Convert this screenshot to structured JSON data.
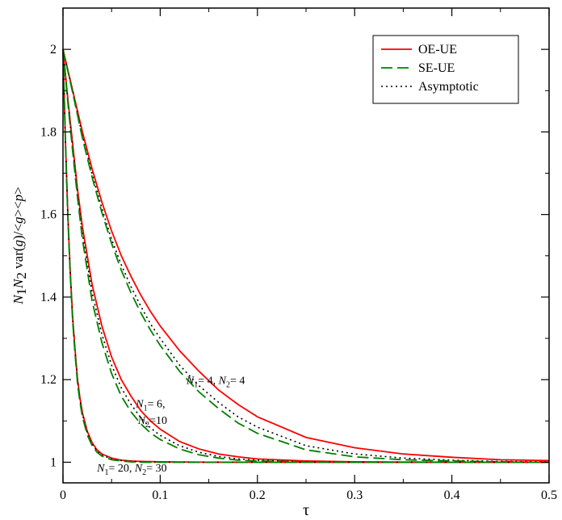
{
  "chart_data": {
    "type": "line",
    "xlabel": "τ",
    "ylabel": {
      "parts": [
        {
          "t": "N",
          "style": "it"
        },
        {
          "t": "1",
          "style": "sub"
        },
        {
          "t": "N",
          "style": "it"
        },
        {
          "t": "2",
          "style": "sub"
        },
        {
          "t": " var(",
          "style": "normal"
        },
        {
          "t": "g",
          "style": "it"
        },
        {
          "t": ")/<",
          "style": "normal"
        },
        {
          "t": "g",
          "style": "it"
        },
        {
          "t": "><",
          "style": "normal"
        },
        {
          "t": "p",
          "style": "it"
        },
        {
          "t": ">",
          "style": "normal"
        }
      ]
    },
    "xlim": [
      0,
      0.5
    ],
    "ylim": [
      0.95,
      2.1
    ],
    "xticks": [
      0,
      0.1,
      0.2,
      0.3,
      0.4,
      0.5
    ],
    "xtick_labels": [
      "0",
      "0.1",
      "0.2",
      "0.3",
      "0.4",
      "0.5"
    ],
    "yticks": [
      1,
      1.2,
      1.4,
      1.6,
      1.8,
      2
    ],
    "ytick_labels": [
      "1",
      "1.2",
      "1.4",
      "1.6",
      "1.8",
      "2"
    ],
    "grid": false,
    "legend_position": "top-right",
    "legend": [
      {
        "label": "OE-UE",
        "color": "#ff0000",
        "dash": "solid"
      },
      {
        "label": "SE-UE",
        "color": "#008000",
        "dash": "dashed"
      },
      {
        "label": "Asymptotic",
        "color": "#000000",
        "dash": "dotted"
      }
    ],
    "series": [
      {
        "group": "N1=4, N2=4",
        "style": "OE-UE",
        "x": [
          0,
          0.01,
          0.02,
          0.03,
          0.04,
          0.05,
          0.06,
          0.07,
          0.08,
          0.09,
          0.1,
          0.12,
          0.14,
          0.16,
          0.18,
          0.2,
          0.25,
          0.3,
          0.35,
          0.4,
          0.45,
          0.5
        ],
        "y": [
          2,
          1.9,
          1.8,
          1.71,
          1.63,
          1.56,
          1.5,
          1.45,
          1.405,
          1.365,
          1.33,
          1.27,
          1.22,
          1.175,
          1.14,
          1.11,
          1.06,
          1.035,
          1.02,
          1.012,
          1.006,
          1.004
        ]
      },
      {
        "group": "N1=4, N2=4",
        "style": "Asymptotic",
        "x": [
          0,
          0.01,
          0.02,
          0.03,
          0.04,
          0.05,
          0.06,
          0.07,
          0.08,
          0.09,
          0.1,
          0.12,
          0.14,
          0.16,
          0.18,
          0.2,
          0.25,
          0.3,
          0.35,
          0.4,
          0.45,
          0.5
        ],
        "y": [
          2,
          1.898,
          1.79,
          1.698,
          1.615,
          1.54,
          1.478,
          1.425,
          1.378,
          1.335,
          1.3,
          1.235,
          1.185,
          1.145,
          1.11,
          1.085,
          1.04,
          1.02,
          1.01,
          1.005,
          1.002,
          1.001
        ]
      },
      {
        "group": "N1=4, N2=4",
        "style": "SE-UE",
        "x": [
          0,
          0.01,
          0.02,
          0.03,
          0.04,
          0.05,
          0.06,
          0.07,
          0.08,
          0.09,
          0.1,
          0.12,
          0.14,
          0.16,
          0.18,
          0.2,
          0.25,
          0.3,
          0.35,
          0.4,
          0.45,
          0.5
        ],
        "y": [
          2,
          1.895,
          1.785,
          1.69,
          1.605,
          1.53,
          1.465,
          1.41,
          1.362,
          1.32,
          1.283,
          1.22,
          1.17,
          1.13,
          1.095,
          1.07,
          1.03,
          1.013,
          1.006,
          1.003,
          1.001,
          1
        ]
      },
      {
        "group": "N1=6, N2=10",
        "style": "OE-UE",
        "x": [
          0,
          0.005,
          0.01,
          0.015,
          0.02,
          0.03,
          0.04,
          0.05,
          0.06,
          0.07,
          0.08,
          0.09,
          0.1,
          0.12,
          0.14,
          0.16,
          0.18,
          0.2,
          0.25,
          0.3,
          0.4,
          0.5
        ],
        "y": [
          2,
          1.88,
          1.77,
          1.66,
          1.57,
          1.43,
          1.33,
          1.255,
          1.2,
          1.16,
          1.125,
          1.1,
          1.08,
          1.05,
          1.032,
          1.02,
          1.013,
          1.008,
          1.003,
          1.001,
          1,
          1
        ]
      },
      {
        "group": "N1=6, N2=10",
        "style": "Asymptotic",
        "x": [
          0,
          0.005,
          0.01,
          0.015,
          0.02,
          0.03,
          0.04,
          0.05,
          0.06,
          0.07,
          0.08,
          0.09,
          0.1,
          0.12,
          0.14,
          0.16,
          0.18,
          0.2,
          0.25,
          0.3,
          0.4,
          0.5
        ],
        "y": [
          2,
          1.875,
          1.76,
          1.65,
          1.555,
          1.41,
          1.31,
          1.235,
          1.18,
          1.14,
          1.108,
          1.083,
          1.065,
          1.04,
          1.024,
          1.014,
          1.008,
          1.005,
          1.001,
          1,
          1,
          1
        ]
      },
      {
        "group": "N1=6, N2=10",
        "style": "SE-UE",
        "x": [
          0,
          0.005,
          0.01,
          0.015,
          0.02,
          0.03,
          0.04,
          0.05,
          0.06,
          0.07,
          0.08,
          0.09,
          0.1,
          0.12,
          0.14,
          0.16,
          0.18,
          0.2,
          0.25,
          0.3,
          0.4,
          0.5
        ],
        "y": [
          2,
          1.872,
          1.752,
          1.64,
          1.54,
          1.39,
          1.29,
          1.215,
          1.16,
          1.122,
          1.093,
          1.071,
          1.055,
          1.032,
          1.018,
          1.01,
          1.005,
          1.003,
          1.001,
          1,
          1,
          1
        ]
      },
      {
        "group": "N1=20, N2=30",
        "style": "OE-UE",
        "x": [
          0,
          0.0025,
          0.005,
          0.0075,
          0.01,
          0.0125,
          0.015,
          0.0175,
          0.02,
          0.025,
          0.03,
          0.035,
          0.04,
          0.05,
          0.06,
          0.07,
          0.08,
          0.1,
          0.15,
          0.2,
          0.3,
          0.5
        ],
        "y": [
          2,
          1.78,
          1.6,
          1.46,
          1.35,
          1.27,
          1.2,
          1.155,
          1.12,
          1.075,
          1.047,
          1.03,
          1.02,
          1.01,
          1.005,
          1.003,
          1.002,
          1.001,
          1,
          1,
          1,
          1
        ]
      },
      {
        "group": "N1=20, N2=30",
        "style": "Asymptotic",
        "x": [
          0,
          0.0025,
          0.005,
          0.0075,
          0.01,
          0.0125,
          0.015,
          0.0175,
          0.02,
          0.025,
          0.03,
          0.035,
          0.04,
          0.05,
          0.06,
          0.07,
          0.08,
          0.1,
          0.15,
          0.2,
          0.3,
          0.5
        ],
        "y": [
          2,
          1.778,
          1.597,
          1.456,
          1.345,
          1.265,
          1.196,
          1.15,
          1.116,
          1.071,
          1.044,
          1.027,
          1.017,
          1.008,
          1.004,
          1.002,
          1.001,
          1,
          1,
          1,
          1,
          1
        ]
      },
      {
        "group": "N1=20, N2=30",
        "style": "SE-UE",
        "x": [
          0,
          0.0025,
          0.005,
          0.0075,
          0.01,
          0.0125,
          0.015,
          0.0175,
          0.02,
          0.025,
          0.03,
          0.035,
          0.04,
          0.05,
          0.06,
          0.07,
          0.08,
          0.1,
          0.15,
          0.2,
          0.3,
          0.5
        ],
        "y": [
          2,
          1.776,
          1.594,
          1.452,
          1.34,
          1.26,
          1.19,
          1.145,
          1.11,
          1.066,
          1.04,
          1.024,
          1.015,
          1.006,
          1.003,
          1.001,
          1,
          1,
          1,
          1,
          1,
          1
        ]
      }
    ],
    "annotations": [
      {
        "id": "n4",
        "x": 0.127,
        "y": 1.19,
        "parts": [
          {
            "t": "N",
            "style": "it"
          },
          {
            "t": "1",
            "style": "sub"
          },
          {
            "t": "= 4, ",
            "style": "normal"
          },
          {
            "t": "N",
            "style": "it"
          },
          {
            "t": "2",
            "style": "sub"
          },
          {
            "t": "= 4",
            "style": "normal"
          }
        ]
      },
      {
        "id": "n6a",
        "x": 0.075,
        "y": 1.133,
        "parts": [
          {
            "t": "N",
            "style": "it"
          },
          {
            "t": "1",
            "style": "sub"
          },
          {
            "t": "= 6,",
            "style": "normal"
          }
        ]
      },
      {
        "id": "n6b",
        "x": 0.077,
        "y": 1.093,
        "parts": [
          {
            "t": "N",
            "style": "it"
          },
          {
            "t": "2",
            "style": "sub"
          },
          {
            "t": "=10",
            "style": "normal"
          }
        ]
      },
      {
        "id": "n20",
        "x": 0.035,
        "y": 0.977,
        "parts": [
          {
            "t": "N",
            "style": "it"
          },
          {
            "t": "1",
            "style": "sub"
          },
          {
            "t": "= 20, ",
            "style": "normal"
          },
          {
            "t": "N",
            "style": "it"
          },
          {
            "t": "2",
            "style": "sub"
          },
          {
            "t": "= 30",
            "style": "normal"
          }
        ]
      }
    ]
  }
}
